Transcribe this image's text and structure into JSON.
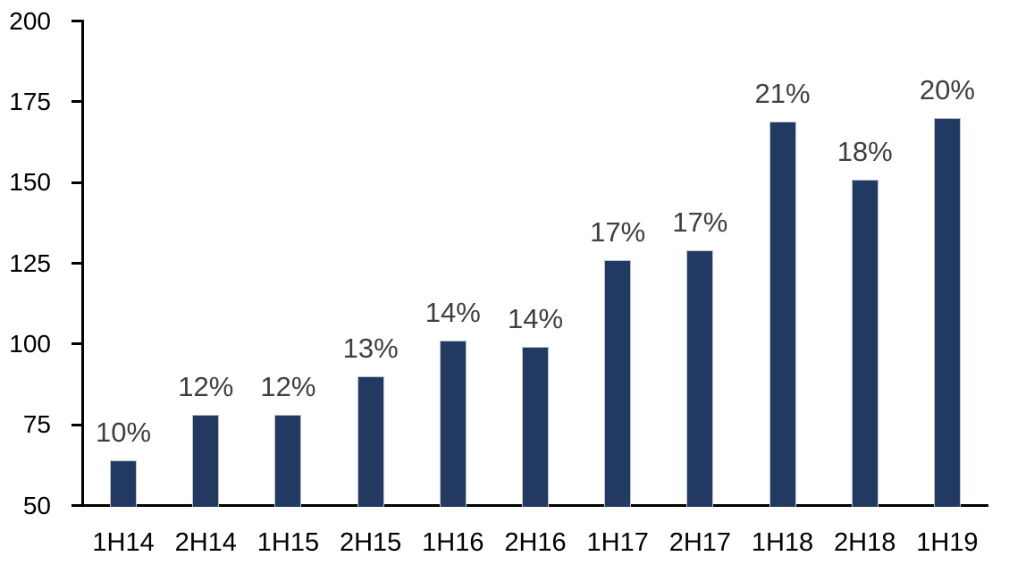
{
  "chart_data": {
    "type": "bar",
    "title": "",
    "xlabel": "",
    "ylabel": "",
    "categories": [
      "1H14",
      "2H14",
      "1H15",
      "2H15",
      "1H16",
      "2H16",
      "1H17",
      "2H17",
      "1H18",
      "2H18",
      "1H19"
    ],
    "values": [
      64,
      78,
      78,
      90,
      101,
      99,
      126,
      129,
      169,
      151,
      170
    ],
    "bar_labels": [
      "10%",
      "12%",
      "12%",
      "13%",
      "14%",
      "14%",
      "17%",
      "17%",
      "21%",
      "18%",
      "20%"
    ],
    "ylim": [
      50,
      200
    ],
    "yticks": [
      50,
      75,
      100,
      125,
      150,
      175,
      200
    ],
    "grid": "off",
    "legend": "none",
    "colors": {
      "bar_fill": "#223A62",
      "bar_border": "#B9C2CE",
      "data_label": "#3F3F3F",
      "axis_text": "#000000",
      "axis_line": "#000000",
      "background": "#FFFFFF"
    }
  }
}
